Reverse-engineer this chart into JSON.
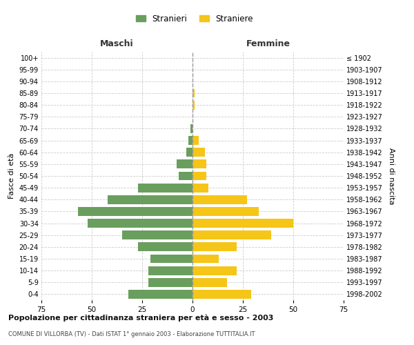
{
  "age_groups": [
    "0-4",
    "5-9",
    "10-14",
    "15-19",
    "20-24",
    "25-29",
    "30-34",
    "35-39",
    "40-44",
    "45-49",
    "50-54",
    "55-59",
    "60-64",
    "65-69",
    "70-74",
    "75-79",
    "80-84",
    "85-89",
    "90-94",
    "95-99",
    "100+"
  ],
  "birth_years": [
    "1998-2002",
    "1993-1997",
    "1988-1992",
    "1983-1987",
    "1978-1982",
    "1973-1977",
    "1968-1972",
    "1963-1967",
    "1958-1962",
    "1953-1957",
    "1948-1952",
    "1943-1947",
    "1938-1942",
    "1933-1937",
    "1928-1932",
    "1923-1927",
    "1918-1922",
    "1913-1917",
    "1908-1912",
    "1903-1907",
    "≤ 1902"
  ],
  "maschi": [
    32,
    22,
    22,
    21,
    27,
    35,
    52,
    57,
    42,
    27,
    7,
    8,
    3,
    2,
    1,
    0,
    0,
    0,
    0,
    0,
    0
  ],
  "femmine": [
    29,
    17,
    22,
    13,
    22,
    39,
    50,
    33,
    27,
    8,
    7,
    7,
    6,
    3,
    0,
    0,
    1,
    1,
    0,
    0,
    0
  ],
  "color_maschi": "#6a9e5e",
  "color_femmine": "#f5c518",
  "title": "Popolazione per cittadinanza straniera per età e sesso - 2003",
  "subtitle": "COMUNE DI VILLORBA (TV) - Dati ISTAT 1° gennaio 2003 - Elaborazione TUTTITALIA.IT",
  "ylabel_left": "Fasce di età",
  "ylabel_right": "Anni di nascita",
  "xlabel_maschi": "Maschi",
  "xlabel_femmine": "Femmine",
  "legend_maschi": "Stranieri",
  "legend_femmine": "Straniere",
  "xlim": 75,
  "background_color": "#ffffff",
  "grid_color": "#cccccc"
}
